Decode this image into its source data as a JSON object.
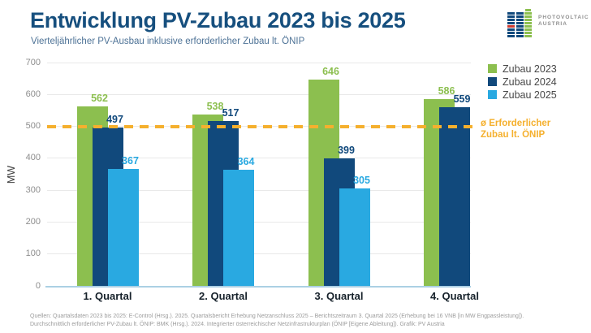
{
  "header": {
    "title": "Entwicklung PV-Zubau 2023 bis 2025",
    "subtitle": "Vierteljährlicher PV-Ausbau inklusive erforderlicher Zubau lt. ÖNIP"
  },
  "logo": {
    "line1": "PHOTOVOLTAIC",
    "line2": "AUSTRIA"
  },
  "colors": {
    "green": "#8cbf4f",
    "navy": "#11497c",
    "lightblue": "#29a9e1",
    "orange": "#f5b02e",
    "red": "#cc3b31",
    "title_blue": "#164f7e",
    "axis_gray": "#8d8d8d",
    "grid_gray": "#e9e9e9",
    "baseline_blue": "#abd0e4",
    "category_dark": "#17222b"
  },
  "chart_data": {
    "type": "bar",
    "categories": [
      "1. Quartal",
      "2. Quartal",
      "3. Quartal",
      "4. Quartal"
    ],
    "series": [
      {
        "name": "Zubau 2023",
        "color": "#8cbf4f",
        "values": [
          562,
          538,
          646,
          586
        ]
      },
      {
        "name": "Zubau 2024",
        "color": "#11497c",
        "values": [
          497,
          517,
          399,
          559
        ]
      },
      {
        "name": "Zubau 2025",
        "color": "#29a9e1",
        "values": [
          367,
          364,
          305,
          null
        ]
      }
    ],
    "ylabel": "MW",
    "ylim": [
      0,
      700
    ],
    "yticks": [
      0,
      100,
      200,
      300,
      400,
      500,
      600,
      700
    ],
    "grid": true,
    "legend_position": "top-right",
    "reference_line": {
      "value": 500,
      "style": "dashed",
      "color": "#f5b02e",
      "label_lines": [
        "ø Erforderlicher",
        "Zubau lt. ÖNIP"
      ]
    }
  },
  "footer": {
    "line1": "Quellen: Quartalsdaten 2023 bis 2025: E-Control (Hrsg.). 2025. Quartalsbericht Erhebung Netzanschluss 2025 – Berichtszeitraum 3. Quartal 2025 (Erhebung bei 16 VNB [in MW Engpassleistung]).",
    "line2": "Durchschnittlich erforderlicher PV-Zubau lt. ÖNIP: BMK (Hrsg.). 2024. Integrierter österreichischer Netzinfrastrukturplan (ÖNIP [Eigene Ableitung]). Grafik: PV Austria"
  }
}
